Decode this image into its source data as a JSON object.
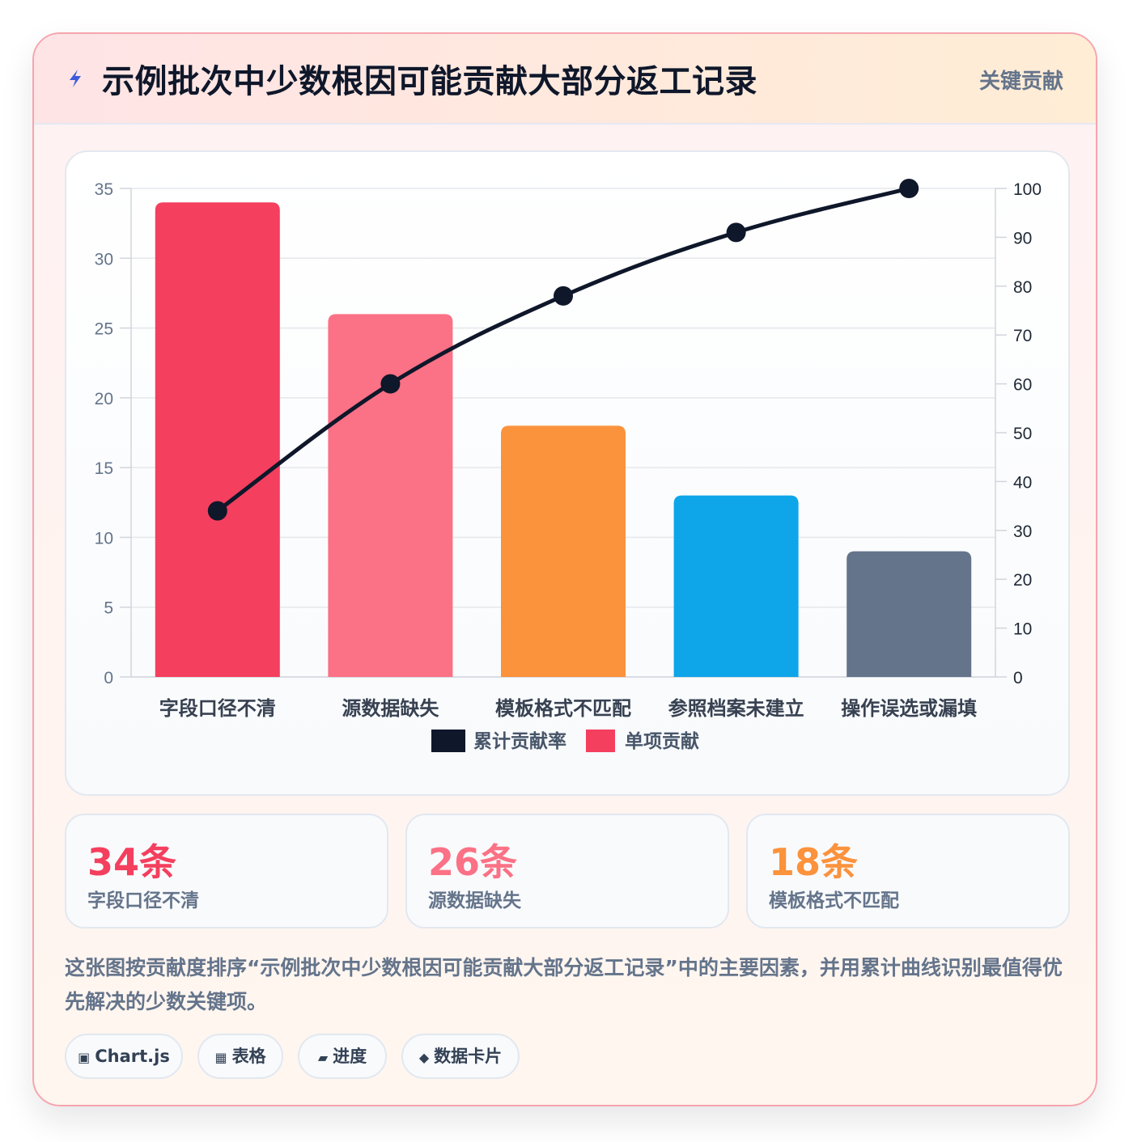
{
  "header": {
    "title": "示例批次中少数根因可能贡献大部分返工记录",
    "badge": "关键贡献",
    "accent": "#3b5bdb"
  },
  "chart_data": {
    "type": "bar",
    "categories": [
      "字段口径不清",
      "源数据缺失",
      "模板格式不匹配",
      "参照档案未建立",
      "操作误选或漏填"
    ],
    "series": [
      {
        "name": "单项贡献",
        "type": "bar",
        "axis": "left",
        "values": [
          34,
          26,
          18,
          13,
          9
        ],
        "colors": [
          "#f43f5e",
          "#fb7185",
          "#fb923c",
          "#0ea5e9",
          "#64748b"
        ]
      },
      {
        "name": "累计贡献率",
        "type": "line",
        "axis": "right",
        "values": [
          34,
          60,
          78,
          91,
          100
        ],
        "color": "#0f172a"
      }
    ],
    "y_left": {
      "min": 0,
      "max": 35,
      "ticks": [
        "0",
        "5",
        "10",
        "15",
        "20",
        "25",
        "30",
        "35"
      ]
    },
    "y_right": {
      "min": 0,
      "max": 100,
      "ticks": [
        "0",
        "10",
        "20",
        "30",
        "40",
        "50",
        "60",
        "70",
        "80",
        "90",
        "100"
      ]
    },
    "legend": [
      {
        "label": "累计贡献率",
        "color": "#0f172a"
      },
      {
        "label": "单项贡献",
        "color": "#f43f5e"
      }
    ],
    "legend_position": "bottom",
    "grid": true
  },
  "stats": [
    {
      "value": "34条",
      "label": "字段口径不清",
      "color": "#f43f5e"
    },
    {
      "value": "26条",
      "label": "源数据缺失",
      "color": "#fb7185"
    },
    {
      "value": "18条",
      "label": "模板格式不匹配",
      "color": "#fb923c"
    }
  ],
  "description": "这张图按贡献度排序“示例批次中少数根因可能贡献大部分返工记录”中的主要因素，并用累计曲线识别最值得优先解决的少数关键项。",
  "tags": [
    {
      "icon": "▣",
      "label": "Chart.js"
    },
    {
      "icon": "▦",
      "label": "表格"
    },
    {
      "icon": "▰",
      "label": "进度"
    },
    {
      "icon": "◆",
      "label": "数据卡片"
    }
  ]
}
